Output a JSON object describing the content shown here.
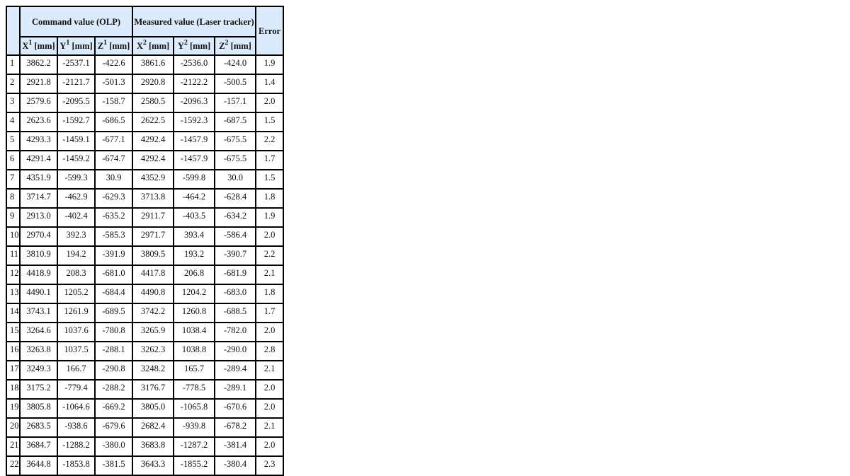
{
  "table": {
    "group_headers": {
      "command": "Command value (OLP)",
      "measured": "Measured value (Laser tracker)",
      "error": "Error"
    },
    "columns": [
      {
        "axis": "X",
        "sup": "1",
        "unit": " [mm]"
      },
      {
        "axis": "Y",
        "sup": "1",
        "unit": " [mm]"
      },
      {
        "axis": "Z",
        "sup": "1",
        "unit": " [mm]"
      },
      {
        "axis": "X",
        "sup": "2",
        "unit": " [mm]"
      },
      {
        "axis": "Y",
        "sup": "2",
        "unit": " [mm]"
      },
      {
        "axis": "Z",
        "sup": "2",
        "unit": " [mm]"
      }
    ],
    "rows": [
      [
        "1",
        "3862.2",
        "-2537.1",
        "-422.6",
        "3861.6",
        "-2536.0",
        "-424.0",
        "1.9"
      ],
      [
        "2",
        "2921.8",
        "-2121.7",
        "-501.3",
        "2920.8",
        "-2122.2",
        "-500.5",
        "1.4"
      ],
      [
        "3",
        "2579.6",
        "-2095.5",
        "-158.7",
        "2580.5",
        "-2096.3",
        "-157.1",
        "2.0"
      ],
      [
        "4",
        "2623.6",
        "-1592.7",
        "-686.5",
        "2622.5",
        "-1592.3",
        "-687.5",
        "1.5"
      ],
      [
        "5",
        "4293.3",
        "-1459.1",
        "-677.1",
        "4292.4",
        "-1457.9",
        "-675.5",
        "2.2"
      ],
      [
        "6",
        "4291.4",
        "-1459.2",
        "-674.7",
        "4292.4",
        "-1457.9",
        "-675.5",
        "1.7"
      ],
      [
        "7",
        "4351.9",
        "-599.3",
        "30.9",
        "4352.9",
        "-599.8",
        "30.0",
        "1.5"
      ],
      [
        "8",
        "3714.7",
        "-462.9",
        "-629.3",
        "3713.8",
        "-464.2",
        "-628.4",
        "1.8"
      ],
      [
        "9",
        "2913.0",
        "-402.4",
        "-635.2",
        "2911.7",
        "-403.5",
        "-634.2",
        "1.9"
      ],
      [
        "10",
        "2970.4",
        "392.3",
        "-585.3",
        "2971.7",
        "393.4",
        "-586.4",
        "2.0"
      ],
      [
        "11",
        "3810.9",
        "194.2",
        "-391.9",
        "3809.5",
        "193.2",
        "-390.7",
        "2.2"
      ],
      [
        "12",
        "4418.9",
        "208.3",
        "-681.0",
        "4417.8",
        "206.8",
        "-681.9",
        "2.1"
      ],
      [
        "13",
        "4490.1",
        "1205.2",
        "-684.4",
        "4490.8",
        "1204.2",
        "-683.0",
        "1.8"
      ],
      [
        "14",
        "3743.1",
        "1261.9",
        "-689.5",
        "3742.2",
        "1260.8",
        "-688.5",
        "1.7"
      ],
      [
        "15",
        "3264.6",
        "1037.6",
        "-780.8",
        "3265.9",
        "1038.4",
        "-782.0",
        "2.0"
      ],
      [
        "16",
        "3263.8",
        "1037.5",
        "-288.1",
        "3262.3",
        "1038.8",
        "-290.0",
        "2.8"
      ],
      [
        "17",
        "3249.3",
        "166.7",
        "-290.8",
        "3248.2",
        "165.7",
        "-289.4",
        "2.1"
      ],
      [
        "18",
        "3175.2",
        "-779.4",
        "-288.2",
        "3176.7",
        "-778.5",
        "-289.1",
        "2.0"
      ],
      [
        "19",
        "3805.8",
        "-1064.6",
        "-669.2",
        "3805.0",
        "-1065.8",
        "-670.6",
        "2.0"
      ],
      [
        "20",
        "2683.5",
        "-938.6",
        "-679.6",
        "2682.4",
        "-939.8",
        "-678.2",
        "2.1"
      ],
      [
        "21",
        "3684.7",
        "-1288.2",
        "-380.0",
        "3683.8",
        "-1287.2",
        "-381.4",
        "2.0"
      ],
      [
        "22",
        "3644.8",
        "-1853.8",
        "-381.5",
        "3643.3",
        "-1855.2",
        "-380.4",
        "2.3"
      ]
    ]
  }
}
